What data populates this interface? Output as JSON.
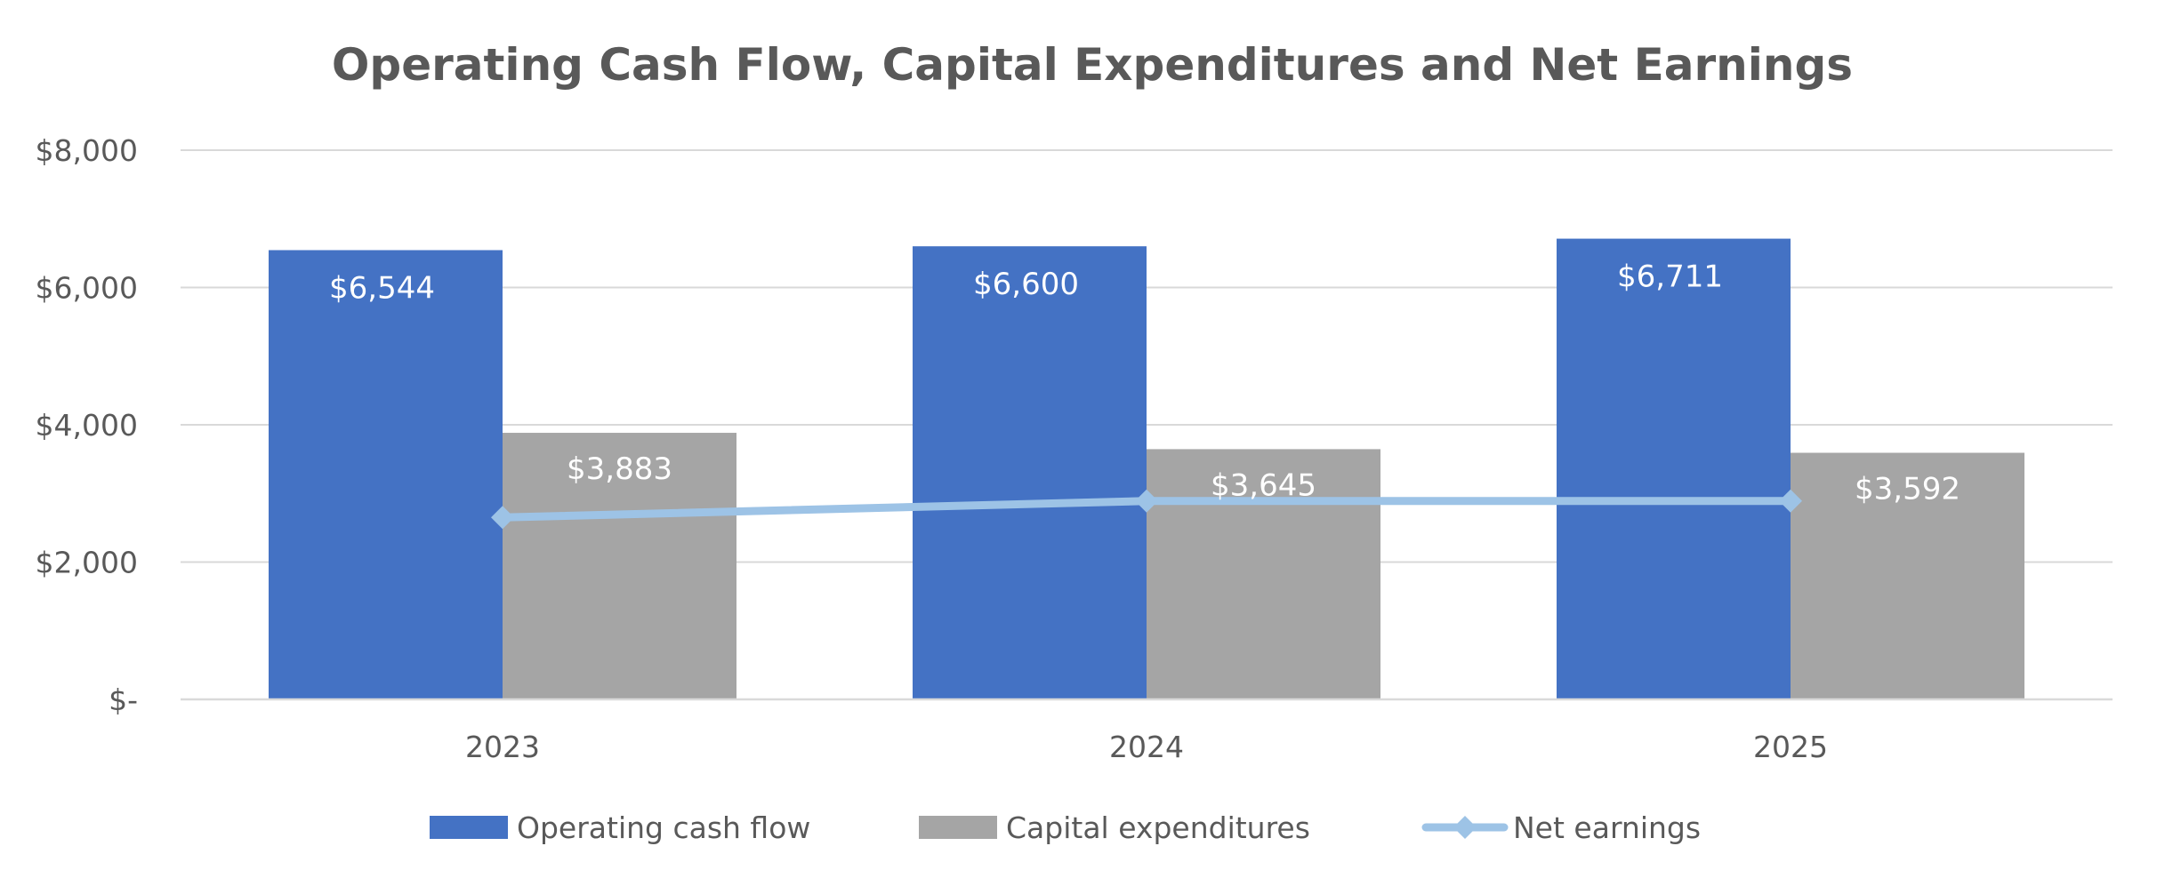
{
  "chart_data": {
    "type": "bar",
    "title": "Operating Cash Flow, Capital Expenditures and Net Earnings",
    "categories": [
      "2023",
      "2024",
      "2025"
    ],
    "series": [
      {
        "name": "Operating cash flow",
        "kind": "bar",
        "color": "#4472c4",
        "values": [
          6544,
          6600,
          6711
        ],
        "labels": [
          "$6,544",
          "$6,600",
          "$6,711"
        ]
      },
      {
        "name": "Capital expenditures",
        "kind": "bar",
        "color": "#a5a5a5",
        "values": [
          3883,
          3645,
          3592
        ],
        "labels": [
          "$3,883",
          "$3,645",
          "$3,592"
        ]
      },
      {
        "name": "Net earnings",
        "kind": "line",
        "color": "#9dc3e6",
        "values": [
          2650,
          2890,
          2890
        ]
      }
    ],
    "y_ticks": [
      0,
      2000,
      4000,
      6000,
      8000
    ],
    "y_tick_labels": [
      "$-",
      "$2,000",
      "$4,000",
      "$6,000",
      "$8,000"
    ],
    "ylim": [
      0,
      8000
    ],
    "xlabel": "",
    "ylabel": "",
    "grid": true,
    "legend_position": "bottom"
  }
}
